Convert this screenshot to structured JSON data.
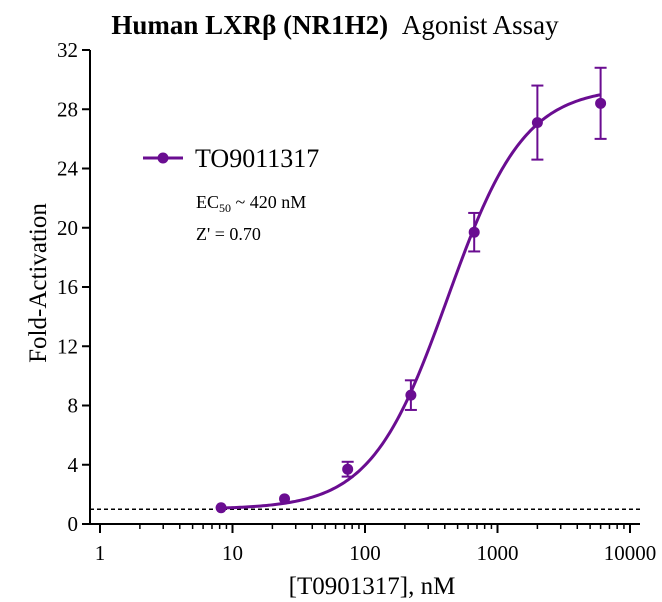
{
  "chart_data": {
    "type": "scatter",
    "title_bold": "Human LXRβ (NR1H2)",
    "title_regular": "Agonist Assay",
    "xlabel": "[T0901317], nM",
    "ylabel": "Fold-Activation",
    "x_scale": "log",
    "xlim": [
      1,
      10000
    ],
    "ylim": [
      0,
      32
    ],
    "x_ticks": [
      1,
      10,
      100,
      1000,
      10000
    ],
    "x_tick_labels": [
      "1",
      "10",
      "100",
      "1000",
      "10000"
    ],
    "y_ticks": [
      0,
      4,
      8,
      12,
      16,
      20,
      24,
      28,
      32
    ],
    "y_tick_labels": [
      "0",
      "4",
      "8",
      "12",
      "16",
      "20",
      "24",
      "28",
      "32"
    ],
    "grid": false,
    "legend_position": "top-left",
    "baseline": {
      "y": 1,
      "style": "dashed"
    },
    "series": [
      {
        "name": "TO9011317",
        "color": "#6a0d91",
        "x": [
          8.2,
          24.7,
          74,
          222,
          667,
          2000,
          6000
        ],
        "y": [
          1.1,
          1.7,
          3.7,
          8.7,
          19.7,
          27.1,
          28.4
        ],
        "error": [
          0.1,
          0.1,
          0.5,
          1.0,
          1.3,
          2.5,
          2.4
        ],
        "fit": {
          "model": "4PL",
          "bottom": 1.0,
          "top": 29.5,
          "ec50": 420,
          "hill": 1.5
        }
      }
    ],
    "annotations": {
      "ec50_prefix": "EC",
      "ec50_sub": "50",
      "ec50_rest": " ~ 420 nM",
      "zprime": "Z' = 0.70"
    }
  }
}
